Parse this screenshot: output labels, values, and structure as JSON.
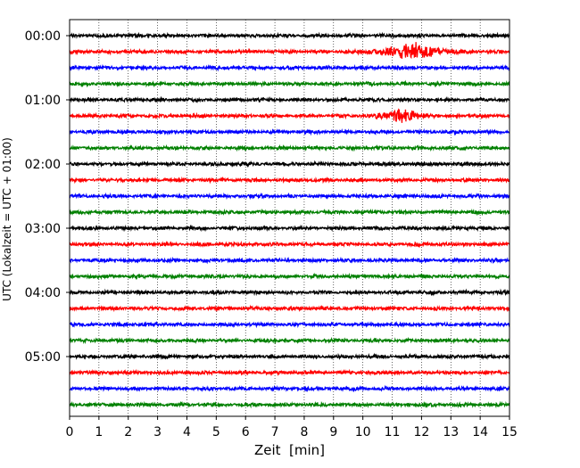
{
  "chart_data": {
    "type": "line",
    "title": "",
    "xlabel": "Zeit  [min]",
    "ylabel": "UTC (Lokalzeit = UTC + 01:00)",
    "xlim": [
      0,
      15
    ],
    "x_ticks": [
      0,
      1,
      2,
      3,
      4,
      5,
      6,
      7,
      8,
      9,
      10,
      11,
      12,
      13,
      14,
      15
    ],
    "y_tick_labels": [
      "00:00",
      "01:00",
      "02:00",
      "03:00",
      "04:00",
      "05:00"
    ],
    "grid": "vertical-dotted",
    "trace_interval_min": 15,
    "trace_colors": [
      "#000000",
      "#ff0000",
      "#0000ff",
      "#008000"
    ],
    "traces": [
      {
        "start": "00:00",
        "color": "#000000"
      },
      {
        "start": "00:15",
        "color": "#ff0000",
        "events": [
          {
            "start_min": 9.3,
            "end_min": 13.5,
            "peak_min": 11.7,
            "amplitude": 1.0
          }
        ]
      },
      {
        "start": "00:30",
        "color": "#0000ff"
      },
      {
        "start": "00:45",
        "color": "#008000"
      },
      {
        "start": "01:00",
        "color": "#000000"
      },
      {
        "start": "01:15",
        "color": "#ff0000",
        "events": [
          {
            "start_min": 9.8,
            "end_min": 12.8,
            "peak_min": 11.3,
            "amplitude": 0.7
          }
        ]
      },
      {
        "start": "01:30",
        "color": "#0000ff"
      },
      {
        "start": "01:45",
        "color": "#008000"
      },
      {
        "start": "02:00",
        "color": "#000000"
      },
      {
        "start": "02:15",
        "color": "#ff0000"
      },
      {
        "start": "02:30",
        "color": "#0000ff"
      },
      {
        "start": "02:45",
        "color": "#008000"
      },
      {
        "start": "03:00",
        "color": "#000000"
      },
      {
        "start": "03:15",
        "color": "#ff0000"
      },
      {
        "start": "03:30",
        "color": "#0000ff"
      },
      {
        "start": "03:45",
        "color": "#008000"
      },
      {
        "start": "04:00",
        "color": "#000000"
      },
      {
        "start": "04:15",
        "color": "#ff0000"
      },
      {
        "start": "04:30",
        "color": "#0000ff"
      },
      {
        "start": "04:45",
        "color": "#008000"
      },
      {
        "start": "05:00",
        "color": "#000000"
      },
      {
        "start": "05:15",
        "color": "#ff0000"
      },
      {
        "start": "05:30",
        "color": "#0000ff"
      },
      {
        "start": "05:45",
        "color": "#008000"
      }
    ]
  }
}
